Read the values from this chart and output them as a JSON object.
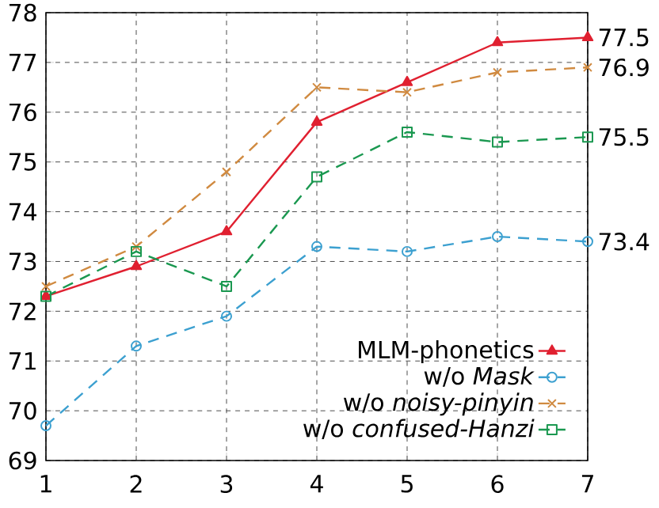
{
  "chart_data": {
    "type": "line",
    "x": [
      1,
      2,
      3,
      4,
      5,
      6,
      7
    ],
    "xlim": [
      1,
      7
    ],
    "xticks": [
      1,
      2,
      3,
      4,
      5,
      6,
      7
    ],
    "ylim": [
      69,
      78
    ],
    "yticks": [
      69,
      70,
      71,
      72,
      73,
      74,
      75,
      76,
      77,
      78
    ],
    "grid": true,
    "legend": "bottom right",
    "series": [
      {
        "name": "MLM-phonetics",
        "color": "#e02030",
        "marker": "triangle",
        "line_style": "solid",
        "values": [
          72.3,
          72.9,
          73.6,
          75.8,
          76.6,
          77.4,
          77.5
        ],
        "value_labels": [
          null,
          null,
          null,
          null,
          null,
          null,
          "77.5"
        ]
      },
      {
        "name": "w/o *Mask*",
        "color": "#3ca0d0",
        "marker": "circle",
        "line_style": "dashed",
        "values": [
          69.7,
          71.3,
          71.9,
          73.3,
          73.2,
          73.5,
          73.4
        ],
        "value_labels": [
          null,
          null,
          null,
          null,
          null,
          null,
          "73.4"
        ]
      },
      {
        "name": "w/o *noisy-pinyin*",
        "color": "#d08a40",
        "marker": "cross",
        "line_style": "dashed",
        "values": [
          72.5,
          73.3,
          74.8,
          76.5,
          76.4,
          76.8,
          76.9
        ],
        "value_labels": [
          null,
          null,
          null,
          null,
          null,
          null,
          "76.9"
        ]
      },
      {
        "name": "w/o *confused-Hanzi*",
        "color": "#1a9850",
        "marker": "square",
        "line_style": "dashed",
        "values": [
          72.3,
          73.2,
          72.5,
          74.7,
          75.6,
          75.4,
          75.5
        ],
        "value_labels": [
          null,
          null,
          null,
          null,
          null,
          null,
          "75.5"
        ]
      }
    ]
  }
}
